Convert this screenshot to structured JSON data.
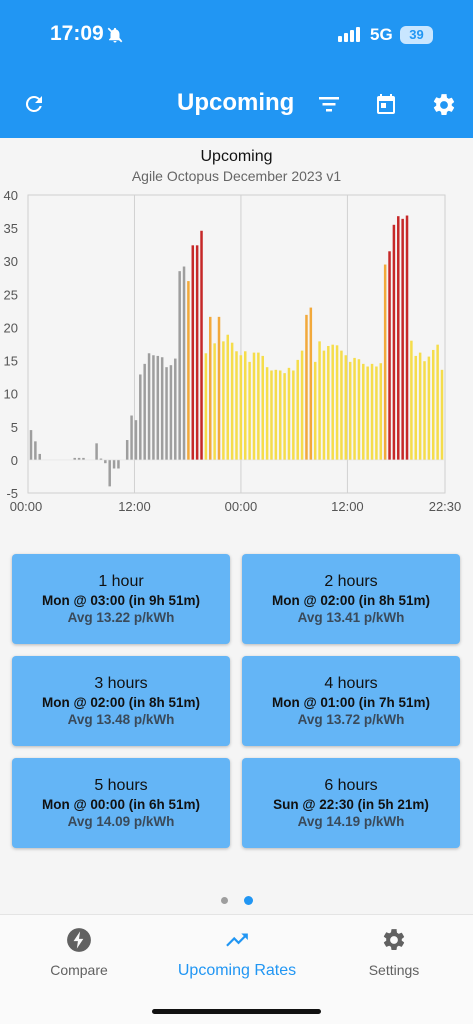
{
  "status": {
    "time": "17:09",
    "network": "5G",
    "battery": "39"
  },
  "appbar": {
    "title": "Upcoming",
    "icons": [
      "refresh-icon",
      "filter-icon",
      "calendar-icon",
      "settings-gear-icon"
    ]
  },
  "chart_data": {
    "type": "bar",
    "title": "Upcoming",
    "subtitle": "Agile Octopus December 2023 v1",
    "xlabel": "",
    "ylabel": "",
    "ylim": [
      -5,
      40
    ],
    "yticks": [
      -5,
      0,
      5,
      10,
      15,
      20,
      25,
      30,
      35,
      40
    ],
    "xticks": [
      "00:00",
      "12:00",
      "00:00",
      "12:00",
      "22:30"
    ],
    "x_start": "00:00",
    "x_interval_minutes": 30,
    "grid": true,
    "colors": {
      "past": "#9e9e9e",
      "low": "#f5dd4b",
      "mid": "#f2a93b",
      "high": "#c62828"
    },
    "values": [
      4.5,
      2.8,
      0.9,
      0,
      0,
      0,
      0,
      0,
      0,
      0,
      0.3,
      0.3,
      0.3,
      0,
      0,
      2.5,
      0.2,
      -0.5,
      -4,
      -1.3,
      -1.3,
      0,
      3,
      6.7,
      6,
      12.9,
      14.5,
      16.1,
      15.8,
      15.7,
      15.5,
      14,
      14.3,
      15.3,
      28.5,
      29.2,
      27,
      32.4,
      32.4,
      34.6,
      16.1,
      21.6,
      17.6,
      21.6,
      17.9,
      18.9,
      17.7,
      16.4,
      15.8,
      16.4,
      14.8,
      16.2,
      16.2,
      15.7,
      14,
      13.5,
      13.6,
      13.5,
      13.1,
      13.9,
      13.5,
      15.1,
      16.5,
      21.9,
      23,
      14.8,
      17.9,
      16.5,
      17.2,
      17.4,
      17.3,
      16.5,
      15.8,
      14.8,
      15.4,
      15.2,
      14.5,
      14.1,
      14.5,
      14.1,
      14.6,
      29.5,
      31.5,
      35.5,
      36.8,
      36.4,
      36.9,
      18,
      15.7,
      16.2,
      14.9,
      15.6,
      16.6,
      17.4,
      13.6
    ],
    "tiers": [
      "past",
      "past",
      "past",
      "past",
      "past",
      "past",
      "past",
      "past",
      "past",
      "past",
      "past",
      "past",
      "past",
      "past",
      "past",
      "past",
      "past",
      "past",
      "past",
      "past",
      "past",
      "past",
      "past",
      "past",
      "past",
      "past",
      "past",
      "past",
      "past",
      "past",
      "past",
      "past",
      "past",
      "past",
      "past",
      "past",
      "mid",
      "high",
      "high",
      "high",
      "low",
      "mid",
      "low",
      "mid",
      "low",
      "low",
      "low",
      "low",
      "low",
      "low",
      "low",
      "low",
      "low",
      "low",
      "low",
      "low",
      "low",
      "low",
      "low",
      "low",
      "low",
      "low",
      "low",
      "mid",
      "mid",
      "low",
      "low",
      "low",
      "low",
      "low",
      "low",
      "low",
      "low",
      "low",
      "low",
      "low",
      "low",
      "low",
      "low",
      "low",
      "low",
      "mid",
      "high",
      "high",
      "high",
      "high",
      "high",
      "low",
      "low",
      "low",
      "low",
      "low",
      "low",
      "low",
      "low"
    ]
  },
  "cards": [
    {
      "duration": "1 hour",
      "when": "Mon @ 03:00 (in 9h 51m)",
      "avg": "Avg 13.22 p/kWh"
    },
    {
      "duration": "2 hours",
      "when": "Mon @ 02:00 (in 8h 51m)",
      "avg": "Avg 13.41 p/kWh"
    },
    {
      "duration": "3 hours",
      "when": "Mon @ 02:00 (in 8h 51m)",
      "avg": "Avg 13.48 p/kWh"
    },
    {
      "duration": "4 hours",
      "when": "Mon @ 01:00 (in 7h 51m)",
      "avg": "Avg 13.72 p/kWh"
    },
    {
      "duration": "5 hours",
      "when": "Mon @ 00:00 (in 6h 51m)",
      "avg": "Avg 14.09 p/kWh"
    },
    {
      "duration": "6 hours",
      "when": "Sun @ 22:30 (in 5h 21m)",
      "avg": "Avg 14.19 p/kWh"
    }
  ],
  "pager": {
    "count": 2,
    "active": 2
  },
  "nav": [
    {
      "label": "Compare",
      "icon": "lightning-icon"
    },
    {
      "label": "Upcoming Rates",
      "icon": "trending-up-icon",
      "active": true
    },
    {
      "label": "Settings",
      "icon": "gear-icon"
    }
  ]
}
